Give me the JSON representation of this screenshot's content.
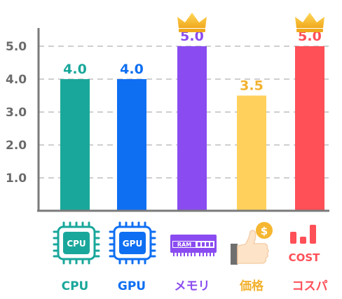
{
  "chart_data": {
    "type": "bar",
    "categories": [
      "CPU",
      "GPU",
      "メモリ",
      "価格",
      "コスパ"
    ],
    "values": [
      4.0,
      4.0,
      5.0,
      3.5,
      5.0
    ],
    "value_labels": [
      "4.0",
      "4.0",
      "5.0",
      "3.5",
      "5.0"
    ],
    "y_ticks": [
      "1.0",
      "2.0",
      "3.0",
      "4.0",
      "5.0"
    ],
    "ylim": [
      0,
      5.0
    ],
    "grid": true,
    "colors": [
      "#1aa79b",
      "#0f6ff2",
      "#8a4cf0",
      "#ffd15c",
      "#ff4f57"
    ],
    "label_colors": [
      "#1aa79b",
      "#0f6ff2",
      "#8a4cf0",
      "#f2b230",
      "#ff4f57"
    ],
    "crowned": [
      "メモリ",
      "コスパ"
    ],
    "icons": [
      "cpu-chip-icon",
      "gpu-chip-icon",
      "ram-module-icon",
      "price-thumbs-up-icon",
      "cost-bars-icon"
    ],
    "icon_texts": {
      "cpu": "CPU",
      "gpu": "GPU",
      "ram": "RAM",
      "coin": "$",
      "cost": "COST"
    }
  }
}
